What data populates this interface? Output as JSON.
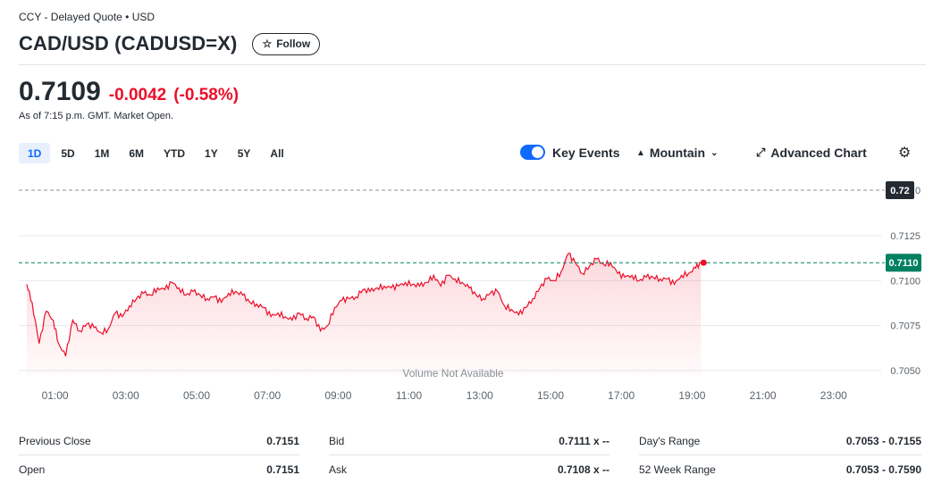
{
  "header": {
    "exchange_line": "CCY - Delayed Quote • USD",
    "title": "CAD/USD (CADUSD=X)",
    "follow_label": "Follow",
    "follow_icon": "star-outline-icon"
  },
  "quote": {
    "price": "0.7109",
    "change": "-0.0042",
    "change_pct": "(-0.58%)",
    "as_of": "As of 7:15 p.m. GMT. Market Open.",
    "negative_color": "#eb0f29"
  },
  "toolbar": {
    "ranges": [
      "1D",
      "5D",
      "1M",
      "6M",
      "YTD",
      "1Y",
      "5Y",
      "All"
    ],
    "active_range": "1D",
    "key_events_label": "Key Events",
    "key_events_on": true,
    "chart_type_label": "Mountain",
    "advanced_label": "Advanced Chart",
    "accent": "#0f69ff"
  },
  "chart_data": {
    "type": "area",
    "x_tick_labels": [
      "01:00",
      "03:00",
      "05:00",
      "07:00",
      "09:00",
      "11:00",
      "13:00",
      "15:00",
      "17:00",
      "19:00",
      "21:00",
      "23:00"
    ],
    "y_tick_labels": [
      "0.7125",
      "0.7100",
      "0.7075",
      "0.7050"
    ],
    "ylim": [
      0.7043,
      0.7147
    ],
    "xlim_hours": [
      0,
      24.3
    ],
    "previous_close": 0.72,
    "previous_close_label": "0.72",
    "current": 0.711,
    "current_label": "0.7110",
    "volume_note": "Volume Not Available",
    "line_color": "#eb0f29",
    "current_color": "#008060",
    "series": [
      {
        "x": [
          0.2,
          0.35,
          0.55,
          0.75,
          0.95,
          1.1,
          1.3,
          1.5,
          1.7,
          1.9,
          2.1,
          2.3,
          2.5,
          2.7,
          2.9,
          3.1,
          3.3,
          3.5,
          3.7,
          3.9,
          4.1,
          4.3,
          4.5,
          4.7,
          4.9,
          5.1,
          5.3,
          5.5,
          5.7,
          5.9,
          6.1,
          6.3,
          6.5,
          6.7,
          6.9,
          7.1,
          7.3,
          7.5,
          7.7,
          7.9,
          8.1,
          8.3,
          8.5,
          8.7,
          8.9,
          9.1,
          9.3,
          9.5,
          9.7,
          9.9,
          10.1,
          10.3,
          10.5,
          10.7,
          10.9,
          11.1,
          11.3,
          11.5,
          11.7,
          11.9,
          12.1,
          12.3,
          12.5,
          12.7,
          12.9,
          13.1,
          13.3,
          13.5,
          13.7,
          13.9,
          14.1,
          14.3,
          14.5,
          14.7,
          14.9,
          15.1,
          15.3,
          15.5,
          15.7,
          15.9,
          16.1,
          16.3,
          16.5,
          16.7,
          16.9,
          17.1,
          17.3,
          17.5,
          17.7,
          17.9,
          18.1,
          18.3,
          18.5,
          18.7,
          18.9,
          19.1,
          19.25
        ],
        "y": [
          0.7098,
          0.7088,
          0.7065,
          0.7083,
          0.7078,
          0.7065,
          0.7058,
          0.7078,
          0.7072,
          0.7076,
          0.7074,
          0.7071,
          0.7073,
          0.7082,
          0.708,
          0.7086,
          0.709,
          0.7093,
          0.7092,
          0.7096,
          0.7095,
          0.7099,
          0.7096,
          0.7092,
          0.7094,
          0.7092,
          0.709,
          0.7091,
          0.7088,
          0.7093,
          0.7094,
          0.7092,
          0.7088,
          0.7087,
          0.7085,
          0.708,
          0.7082,
          0.708,
          0.7078,
          0.7082,
          0.7079,
          0.708,
          0.7072,
          0.7075,
          0.7085,
          0.7089,
          0.709,
          0.7091,
          0.7095,
          0.7094,
          0.7096,
          0.7097,
          0.7096,
          0.7097,
          0.7099,
          0.7098,
          0.7097,
          0.7099,
          0.7103,
          0.7097,
          0.7103,
          0.7101,
          0.7099,
          0.7096,
          0.7092,
          0.709,
          0.7093,
          0.7094,
          0.7086,
          0.7084,
          0.7081,
          0.7085,
          0.709,
          0.7096,
          0.7101,
          0.71,
          0.7105,
          0.7115,
          0.711,
          0.7104,
          0.7108,
          0.7112,
          0.7109,
          0.711,
          0.7104,
          0.7102,
          0.7103,
          0.71,
          0.7102,
          0.7102,
          0.7101,
          0.7101,
          0.7098,
          0.7103,
          0.7104,
          0.7107,
          0.711
        ]
      }
    ]
  },
  "stats": {
    "col1": [
      {
        "label": "Previous Close",
        "value": "0.7151"
      },
      {
        "label": "Open",
        "value": "0.7151"
      }
    ],
    "col2": [
      {
        "label": "Bid",
        "value": "0.7111 x --"
      },
      {
        "label": "Ask",
        "value": "0.7108 x --"
      }
    ],
    "col3": [
      {
        "label": "Day's Range",
        "value": "0.7053 - 0.7155"
      },
      {
        "label": "52 Week Range",
        "value": "0.7053 - 0.7590"
      }
    ]
  }
}
